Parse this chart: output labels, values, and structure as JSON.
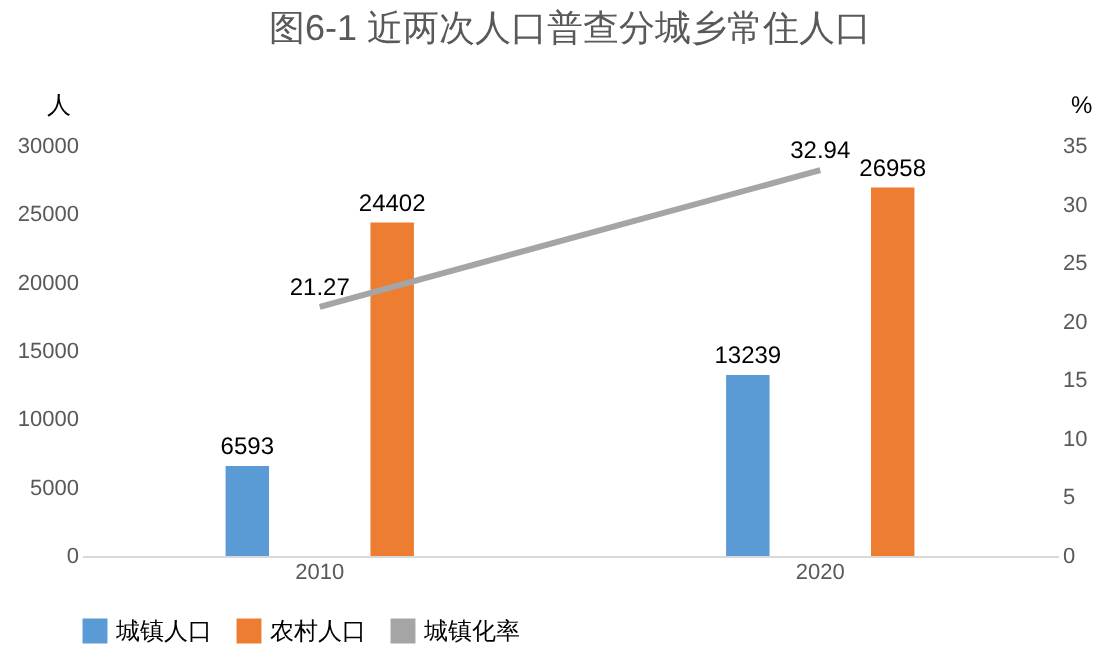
{
  "chart_data": {
    "type": "bar",
    "title": "图6-1 近两次人口普查分城乡常住人口",
    "ylabel": "人",
    "y2label": "%",
    "categories": [
      "2010",
      "2020"
    ],
    "series": [
      {
        "name": "城镇人口",
        "color": "#5b9bd5",
        "values": [
          6593,
          13239
        ]
      },
      {
        "name": "农村人口",
        "color": "#ed7d31",
        "values": [
          24402,
          26958
        ]
      },
      {
        "name": "城镇化率",
        "color": "#a5a5a5",
        "type": "line",
        "axis": "y2",
        "values": [
          21.27,
          32.94
        ]
      }
    ],
    "ylim": [
      0,
      30000
    ],
    "yticks": [
      0,
      5000,
      10000,
      15000,
      20000,
      25000,
      30000
    ],
    "y2lim": [
      0,
      35
    ],
    "y2ticks": [
      0,
      5,
      10,
      15,
      20,
      25,
      30,
      35
    ],
    "data_labels": true,
    "legend": "bottom",
    "grid": false,
    "marker": "none"
  }
}
